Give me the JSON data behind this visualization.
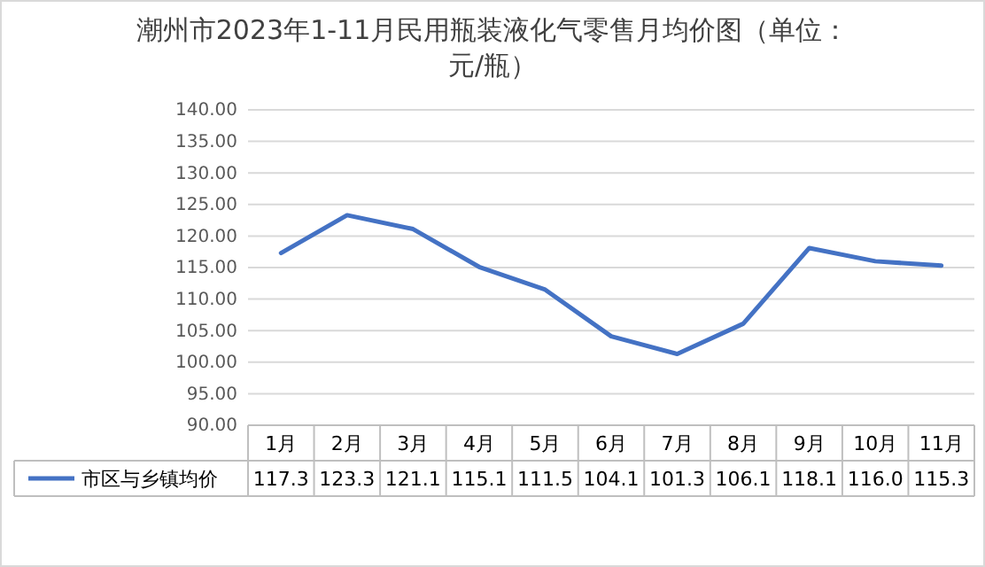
{
  "chart_data": {
    "type": "line",
    "title": "潮州市2023年1-11月民用瓶装液化气零售月均价图（单位：元/瓶）",
    "categories": [
      "1月",
      "2月",
      "3月",
      "4月",
      "5月",
      "6月",
      "7月",
      "8月",
      "9月",
      "10月",
      "11月"
    ],
    "series": [
      {
        "name": "市区与乡镇均价",
        "color": "#4472c4",
        "values": [
          117.3,
          123.3,
          121.1,
          115.1,
          111.5,
          104.1,
          101.3,
          106.1,
          118.1,
          116,
          115.3
        ],
        "value_labels": [
          "117.3",
          "123.3",
          "121.1",
          "115.1",
          "111.5",
          "104.1",
          "101.3",
          "106.1",
          "118.1",
          "116.0",
          "115.3"
        ]
      }
    ],
    "ylim": [
      90,
      140
    ],
    "yticks": [
      {
        "value": 90,
        "label": "90.00"
      },
      {
        "value": 95,
        "label": "95.00"
      },
      {
        "value": 100,
        "label": "100.00"
      },
      {
        "value": 105,
        "label": "105.00"
      },
      {
        "value": 110,
        "label": "110.00"
      },
      {
        "value": 115,
        "label": "115.00"
      },
      {
        "value": 120,
        "label": "120.00"
      },
      {
        "value": 125,
        "label": "125.00"
      },
      {
        "value": 130,
        "label": "130.00"
      },
      {
        "value": 135,
        "label": "135.00"
      },
      {
        "value": 140,
        "label": "140.00"
      }
    ],
    "grid": "y",
    "legend": "bottom",
    "line_style": "solid"
  }
}
